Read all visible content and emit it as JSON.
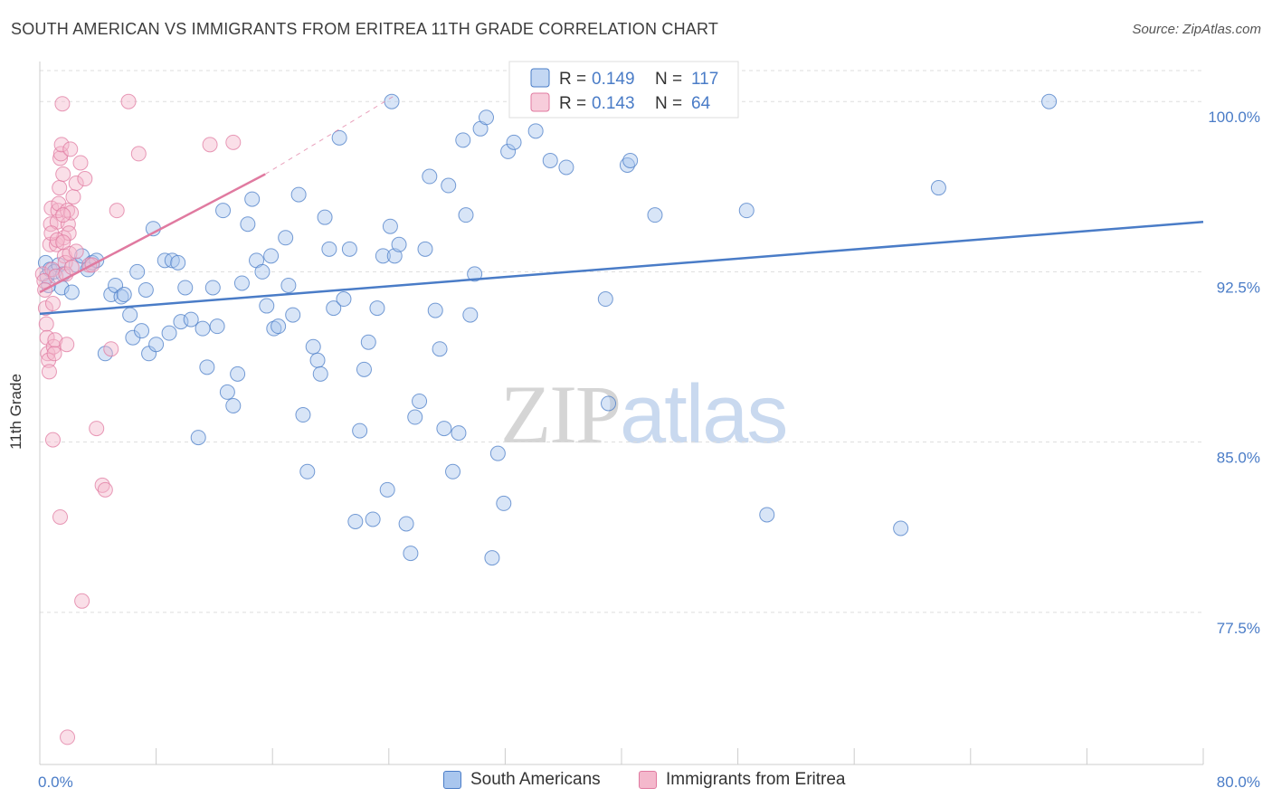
{
  "title": "SOUTH AMERICAN VS IMMIGRANTS FROM ERITREA 11TH GRADE CORRELATION CHART",
  "source": "Source: ZipAtlas.com",
  "watermark": {
    "zip": "ZIP",
    "atlas": "atlas"
  },
  "colors": {
    "blue": "#4a7cc7",
    "blue_fill": "#a9c6ee",
    "pink": "#e07aa0",
    "pink_fill": "#f4b8cc",
    "grid": "#dddddd"
  },
  "legend": {
    "r_label": "R =",
    "n_label": "N =",
    "south_american": {
      "r": "0.149",
      "n": "117"
    },
    "eritrea": {
      "r": "0.143",
      "n": "64"
    }
  },
  "chart_data": {
    "type": "scatter",
    "title": "SOUTH AMERICAN VS IMMIGRANTS FROM ERITREA 11TH GRADE CORRELATION CHART",
    "xlabel": "",
    "ylabel": "11th Grade",
    "xlim": [
      0,
      80
    ],
    "ylim": [
      70.8,
      102.0
    ],
    "x_tick_labels": [
      "0.0%",
      "80.0%"
    ],
    "y_ticks": [
      77.5,
      85.0,
      92.5,
      100.0
    ],
    "y_tick_labels": [
      "77.5%",
      "85.0%",
      "92.5%",
      "100.0%"
    ],
    "grid": true,
    "legend_position": "top-center",
    "series": [
      {
        "name": "South Americans",
        "color": "#4a7cc7",
        "trend": {
          "x": [
            0,
            80
          ],
          "y": [
            90.65,
            94.7
          ]
        },
        "points": [
          [
            0.4,
            92.9
          ],
          [
            0.5,
            92.3
          ],
          [
            0.7,
            92.6
          ],
          [
            1.0,
            92.5
          ],
          [
            0.6,
            91.9
          ],
          [
            1.3,
            92.8
          ],
          [
            1.6,
            92.4
          ],
          [
            1.5,
            91.8
          ],
          [
            2.2,
            91.6
          ],
          [
            2.5,
            92.8
          ],
          [
            2.9,
            93.2
          ],
          [
            3.3,
            92.6
          ],
          [
            3.6,
            92.9
          ],
          [
            3.9,
            93.0
          ],
          [
            4.5,
            88.9
          ],
          [
            4.9,
            91.5
          ],
          [
            5.2,
            91.9
          ],
          [
            5.6,
            91.4
          ],
          [
            5.8,
            91.5
          ],
          [
            6.2,
            90.6
          ],
          [
            6.4,
            89.6
          ],
          [
            6.7,
            92.5
          ],
          [
            7.0,
            89.9
          ],
          [
            7.3,
            91.7
          ],
          [
            7.5,
            88.9
          ],
          [
            7.8,
            94.4
          ],
          [
            8.0,
            89.3
          ],
          [
            8.6,
            93.0
          ],
          [
            8.9,
            89.8
          ],
          [
            9.1,
            93.0
          ],
          [
            9.5,
            92.9
          ],
          [
            9.7,
            90.3
          ],
          [
            10.0,
            91.8
          ],
          [
            10.4,
            90.4
          ],
          [
            10.9,
            85.2
          ],
          [
            11.2,
            90.0
          ],
          [
            11.5,
            88.3
          ],
          [
            11.9,
            91.8
          ],
          [
            12.2,
            90.1
          ],
          [
            12.6,
            95.2
          ],
          [
            12.9,
            87.2
          ],
          [
            13.3,
            86.6
          ],
          [
            13.6,
            88.0
          ],
          [
            13.9,
            92.0
          ],
          [
            14.3,
            94.6
          ],
          [
            14.6,
            95.7
          ],
          [
            14.9,
            93.0
          ],
          [
            15.3,
            92.5
          ],
          [
            15.6,
            91.0
          ],
          [
            15.9,
            93.2
          ],
          [
            16.1,
            90.0
          ],
          [
            16.4,
            90.1
          ],
          [
            16.9,
            94.0
          ],
          [
            17.1,
            91.9
          ],
          [
            17.4,
            90.6
          ],
          [
            17.8,
            95.9
          ],
          [
            18.1,
            86.2
          ],
          [
            18.4,
            83.7
          ],
          [
            18.8,
            89.2
          ],
          [
            19.1,
            88.6
          ],
          [
            19.3,
            88.0
          ],
          [
            19.6,
            94.9
          ],
          [
            19.9,
            93.5
          ],
          [
            20.2,
            90.9
          ],
          [
            20.6,
            98.4
          ],
          [
            20.9,
            91.3
          ],
          [
            21.3,
            93.5
          ],
          [
            21.7,
            81.5
          ],
          [
            22.0,
            85.5
          ],
          [
            22.3,
            88.2
          ],
          [
            22.6,
            89.4
          ],
          [
            22.9,
            81.6
          ],
          [
            23.2,
            90.9
          ],
          [
            23.6,
            93.2
          ],
          [
            23.9,
            82.9
          ],
          [
            24.1,
            94.5
          ],
          [
            24.4,
            93.2
          ],
          [
            24.7,
            93.7
          ],
          [
            25.2,
            81.4
          ],
          [
            25.5,
            80.1
          ],
          [
            25.8,
            86.1
          ],
          [
            26.1,
            86.8
          ],
          [
            26.5,
            93.5
          ],
          [
            26.8,
            96.7
          ],
          [
            27.2,
            90.8
          ],
          [
            27.5,
            89.1
          ],
          [
            27.8,
            85.6
          ],
          [
            28.1,
            96.3
          ],
          [
            28.4,
            83.7
          ],
          [
            28.8,
            85.4
          ],
          [
            29.1,
            98.3
          ],
          [
            29.3,
            95.0
          ],
          [
            29.6,
            90.6
          ],
          [
            29.9,
            92.4
          ],
          [
            30.3,
            98.8
          ],
          [
            30.7,
            99.3
          ],
          [
            31.1,
            79.9
          ],
          [
            31.5,
            84.5
          ],
          [
            31.9,
            82.3
          ],
          [
            32.2,
            97.8
          ],
          [
            32.6,
            98.2
          ],
          [
            33.0,
            100.0
          ],
          [
            34.1,
            98.7
          ],
          [
            35.1,
            97.4
          ],
          [
            36.2,
            97.1
          ],
          [
            38.9,
            91.3
          ],
          [
            39.1,
            86.7
          ],
          [
            39.5,
            100.0
          ],
          [
            40.4,
            97.2
          ],
          [
            40.6,
            97.4
          ],
          [
            42.3,
            95.0
          ],
          [
            48.6,
            95.2
          ],
          [
            50.0,
            81.8
          ],
          [
            59.2,
            81.2
          ],
          [
            61.8,
            96.2
          ],
          [
            69.4,
            100.0
          ],
          [
            24.2,
            100.0
          ]
        ]
      },
      {
        "name": "Immigrants from Eritrea",
        "color": "#e07aa0",
        "trend": {
          "x": [
            0,
            15.5
          ],
          "y": [
            91.6,
            96.8
          ]
        },
        "trend_dashed": {
          "x": [
            15.5,
            24.5
          ],
          "y": [
            96.8,
            100.3
          ]
        },
        "points": [
          [
            0.2,
            92.4
          ],
          [
            0.3,
            92.1
          ],
          [
            0.35,
            91.7
          ],
          [
            0.4,
            90.9
          ],
          [
            0.45,
            90.2
          ],
          [
            0.5,
            89.6
          ],
          [
            0.55,
            88.9
          ],
          [
            0.6,
            88.6
          ],
          [
            0.65,
            88.1
          ],
          [
            0.7,
            93.7
          ],
          [
            0.75,
            94.6
          ],
          [
            0.8,
            95.3
          ],
          [
            0.85,
            92.6
          ],
          [
            0.9,
            91.1
          ],
          [
            0.95,
            89.2
          ],
          [
            1.0,
            88.9
          ],
          [
            1.05,
            89.5
          ],
          [
            1.1,
            92.3
          ],
          [
            1.15,
            93.7
          ],
          [
            1.2,
            94.7
          ],
          [
            1.25,
            95.2
          ],
          [
            1.3,
            95.5
          ],
          [
            1.35,
            96.2
          ],
          [
            1.4,
            97.5
          ],
          [
            1.45,
            97.7
          ],
          [
            1.5,
            98.1
          ],
          [
            1.55,
            99.9
          ],
          [
            1.6,
            96.8
          ],
          [
            1.65,
            94.0
          ],
          [
            1.7,
            93.2
          ],
          [
            1.75,
            92.9
          ],
          [
            1.8,
            92.4
          ],
          [
            1.85,
            89.3
          ],
          [
            1.9,
            95.2
          ],
          [
            1.95,
            94.6
          ],
          [
            2.0,
            94.2
          ],
          [
            2.05,
            93.3
          ],
          [
            2.1,
            97.9
          ],
          [
            2.15,
            95.1
          ],
          [
            2.2,
            92.7
          ],
          [
            0.9,
            85.1
          ],
          [
            1.4,
            81.7
          ],
          [
            1.9,
            72.0
          ],
          [
            2.3,
            95.8
          ],
          [
            2.5,
            96.4
          ],
          [
            2.8,
            97.3
          ],
          [
            3.1,
            96.6
          ],
          [
            3.4,
            92.8
          ],
          [
            3.6,
            92.8
          ],
          [
            3.9,
            85.6
          ],
          [
            4.3,
            83.1
          ],
          [
            4.5,
            82.9
          ],
          [
            4.9,
            89.1
          ],
          [
            5.3,
            95.2
          ],
          [
            6.1,
            100.0
          ],
          [
            6.8,
            97.7
          ],
          [
            11.7,
            98.1
          ],
          [
            13.3,
            98.2
          ],
          [
            2.9,
            78.0
          ],
          [
            1.6,
            95.0
          ],
          [
            0.8,
            94.2
          ],
          [
            1.2,
            93.9
          ],
          [
            2.5,
            93.4
          ],
          [
            1.6,
            93.8
          ]
        ]
      }
    ]
  }
}
